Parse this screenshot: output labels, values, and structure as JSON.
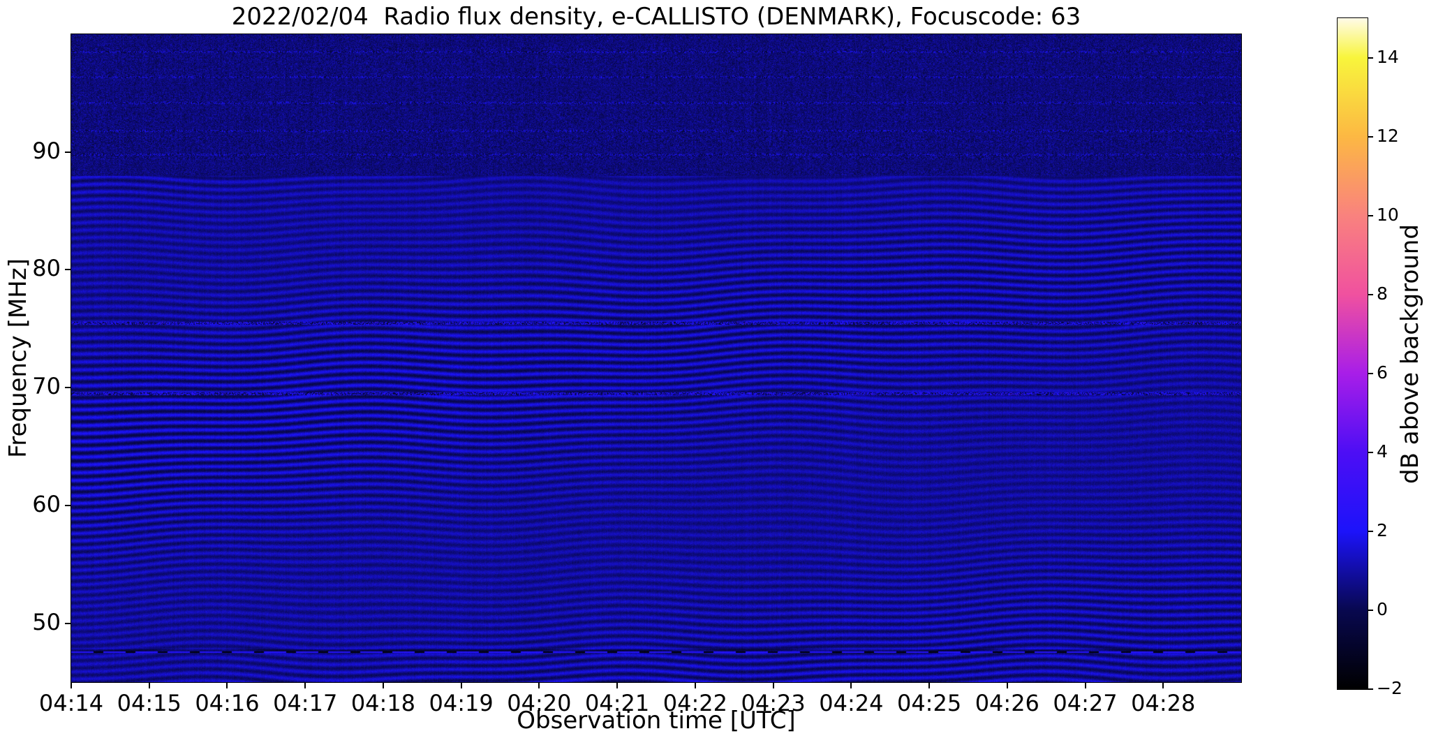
{
  "chart_data": {
    "type": "heatmap",
    "title": "2022/02/04  Radio flux density, e-CALLISTO (DENMARK), Focuscode: 63",
    "xlabel": "Observation time [UTC]",
    "ylabel": "Frequency [MHz]",
    "x_tick_labels": [
      "04:14",
      "04:15",
      "04:16",
      "04:17",
      "04:18",
      "04:19",
      "04:20",
      "04:21",
      "04:22",
      "04:23",
      "04:24",
      "04:25",
      "04:26",
      "04:27",
      "04:28"
    ],
    "x_range": {
      "start": "04:14",
      "end": "04:29",
      "minutes": 15
    },
    "y_tick_values": [
      90,
      80,
      70,
      60,
      50
    ],
    "y_tick_labels": [
      "90",
      "80",
      "70",
      "60",
      "50"
    ],
    "ylim": [
      45,
      100
    ],
    "grid": false,
    "legend": "none",
    "colorbar": {
      "label": "dB above background",
      "tick_labels": [
        "14",
        "12",
        "10",
        "8",
        "6",
        "4",
        "2",
        "0",
        "−2"
      ],
      "tick_values": [
        14,
        12,
        10,
        8,
        6,
        4,
        2,
        0,
        -2
      ],
      "lim": [
        -2,
        15
      ],
      "position": "right",
      "colormap": [
        {
          "v": -2,
          "color": "#000000"
        },
        {
          "v": 0,
          "color": "#08084f"
        },
        {
          "v": 2,
          "color": "#1c13fa"
        },
        {
          "v": 4,
          "color": "#4d0ef5"
        },
        {
          "v": 6,
          "color": "#a81ee8"
        },
        {
          "v": 8,
          "color": "#f0519f"
        },
        {
          "v": 10,
          "color": "#f9827e"
        },
        {
          "v": 12,
          "color": "#fcb843"
        },
        {
          "v": 14,
          "color": "#f8f53c"
        },
        {
          "v": 15,
          "color": "#fffbe8"
        }
      ]
    },
    "features": {
      "description": "Dynamic radio spectrogram, mostly quiet blue background near 0-2 dB; wavy interference fringes below 88 MHz, noisy speckled band 88-100 MHz, speckled horizontal RFI lines near 75.5 and 69.5 MHz, and a bright dashed carrier line near 47.6 MHz.",
      "background_db": 0.85,
      "fringe_band_mhz": [
        45,
        88
      ],
      "fringe_amplitude_db": 1.0,
      "fringe_spacing_px": 11,
      "noise_band_mhz": [
        88,
        100
      ],
      "rfi_speckle_lines_mhz": [
        75.5,
        69.5
      ],
      "top_streak_lines_mhz": [
        98.5,
        96.4,
        94.2,
        91.8,
        89.8
      ],
      "dashed_bright_line_mhz": 47.6
    }
  }
}
